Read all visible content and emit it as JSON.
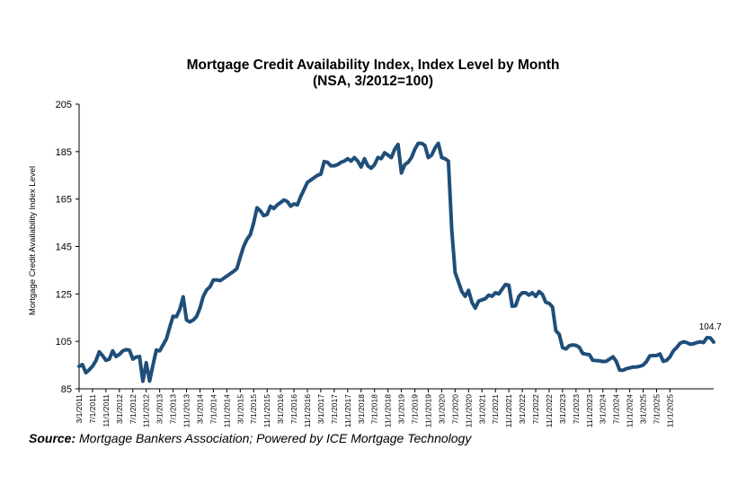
{
  "chart_data": {
    "type": "line",
    "title": "Mortgage Credit Availability Index, Index Level by Month",
    "subtitle": "(NSA, 3/2012=100)",
    "ylabel": "Mortgage Credit Availability Index Level",
    "xlabel": "",
    "ylim": [
      85,
      205
    ],
    "yticks": [
      85,
      105,
      125,
      145,
      165,
      185,
      205
    ],
    "xtick_labels": [
      "3/1/2011",
      "7/1/2011",
      "11/1/2011",
      "3/1/2012",
      "7/1/2012",
      "11/1/2012",
      "3/1/2013",
      "7/1/2013",
      "11/1/2013",
      "3/1/2014",
      "7/1/2014",
      "11/1/2014",
      "3/1/2015",
      "7/1/2015",
      "11/1/2015",
      "3/1/2016",
      "7/1/2016",
      "11/1/2016",
      "3/1/2017",
      "7/1/2017",
      "11/1/2017",
      "3/1/2018",
      "7/1/2018",
      "11/1/2018",
      "3/1/2019",
      "7/1/2019",
      "11/1/2019",
      "3/1/2020",
      "7/1/2020",
      "11/1/2020",
      "3/1/2021",
      "7/1/2021",
      "11/1/2021",
      "3/1/2022",
      "7/1/2022",
      "11/1/2022",
      "3/1/2023",
      "7/1/2023",
      "11/1/2023",
      "3/1/2024",
      "7/1/2024",
      "11/1/2024",
      "3/1/2025",
      "7/1/2025",
      "11/1/2025"
    ],
    "last_label": "104.7",
    "line_color": "#1f4e79",
    "grid": false,
    "series": [
      {
        "values": [
          94.5,
          95.2,
          91.8,
          93.0,
          94.5,
          96.8,
          100.6,
          99.0,
          97.0,
          97.5,
          101.0,
          98.6,
          99.5,
          101.0,
          101.5,
          101.3,
          97.5,
          98.4,
          98.6,
          88.2,
          96.0,
          88.3,
          95.0,
          101.3,
          101.0,
          103.5,
          106.0,
          111.0,
          115.6,
          115.4,
          118.5,
          123.8,
          114.0,
          113.2,
          114.0,
          115.5,
          119.0,
          124.0,
          126.7,
          128.0,
          130.9,
          130.9,
          130.6,
          131.5,
          132.5,
          133.5,
          134.5,
          135.7,
          140.5,
          145.0,
          148.0,
          150.0,
          155.0,
          161.3,
          160.0,
          158.0,
          158.5,
          162.0,
          161.0,
          162.5,
          163.5,
          164.6,
          164.0,
          162.0,
          163.0,
          162.5,
          166.0,
          169.0,
          172.0,
          173.0,
          174.0,
          175.0,
          175.5,
          180.8,
          180.5,
          179.0,
          179.0,
          179.5,
          180.5,
          181.0,
          182.0,
          181.0,
          182.5,
          181.0,
          178.5,
          182.0,
          179.0,
          178.0,
          179.5,
          182.5,
          182.0,
          184.5,
          183.5,
          182.5,
          186.0,
          188.0,
          176.0,
          179.5,
          180.5,
          182.5,
          186.0,
          188.5,
          188.5,
          187.6,
          182.5,
          183.5,
          186.5,
          188.5,
          182.5,
          182.0,
          181.0,
          152.0,
          134.0,
          130.0,
          126.0,
          124.0,
          126.5,
          121.5,
          119.0,
          122.0,
          122.5,
          123.0,
          124.5,
          124.0,
          125.5,
          125.0,
          127.0,
          129.0,
          128.7,
          119.8,
          120.0,
          124.0,
          125.5,
          125.5,
          124.5,
          125.5,
          124.0,
          126.0,
          124.8,
          121.5,
          121.0,
          119.5,
          109.5,
          108.0,
          102.4,
          101.8,
          103.2,
          103.5,
          103.3,
          102.5,
          99.9,
          99.6,
          99.4,
          97.0,
          96.9,
          96.8,
          96.5,
          96.6,
          97.5,
          98.5,
          96.6,
          92.9,
          92.8,
          93.5,
          93.8,
          94.2,
          94.2,
          94.5,
          95.0,
          96.5,
          98.9,
          99.0,
          99.0,
          99.7,
          96.6,
          97.0,
          98.5,
          101.0,
          102.4,
          104.2,
          104.8,
          104.5,
          103.8,
          104.0,
          104.5,
          104.8,
          104.5,
          106.6,
          106.5,
          104.7
        ]
      }
    ]
  },
  "source": {
    "label": "Source:",
    "text": " Mortgage Bankers Association; Powered by ICE Mortgage Technology"
  }
}
